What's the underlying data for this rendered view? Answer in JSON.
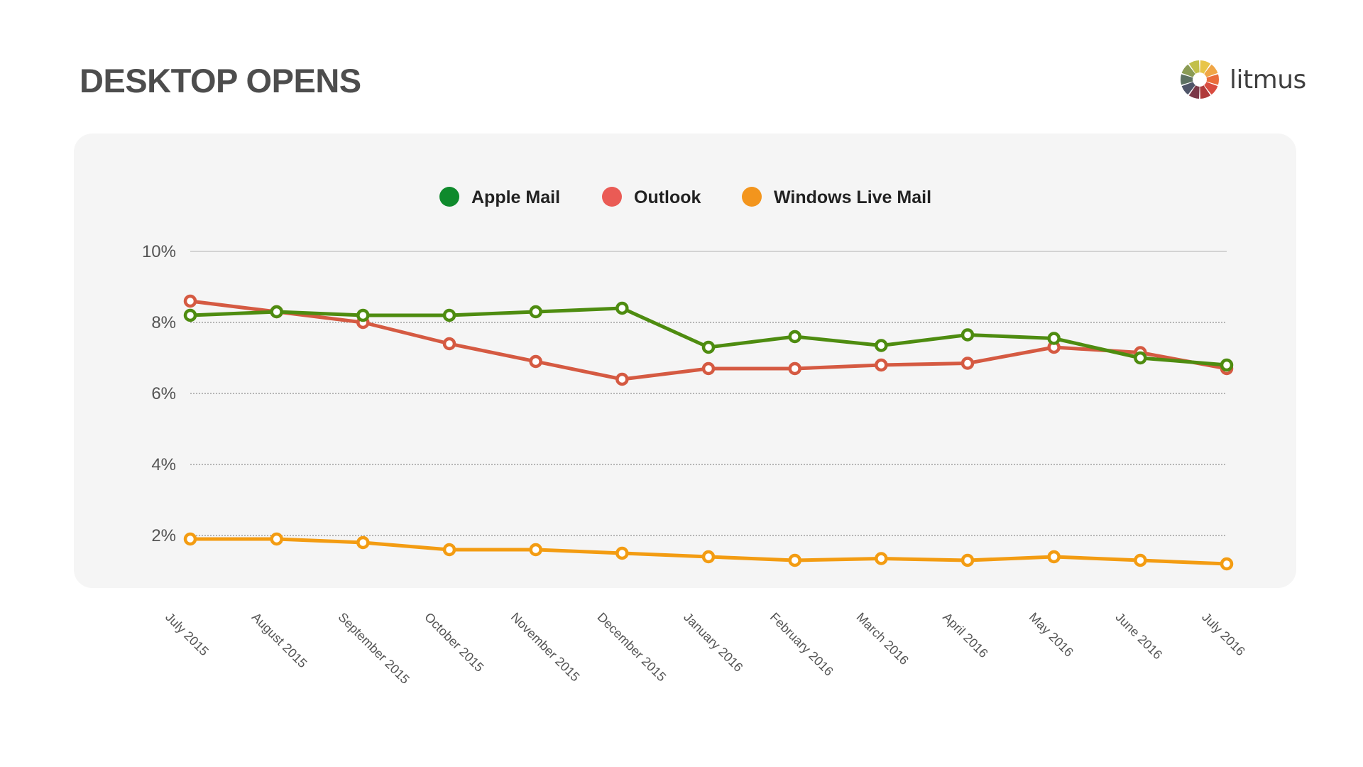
{
  "header": {
    "title": "DESKTOP OPENS",
    "logo_text": "litmus"
  },
  "logo_colors": [
    "#e8c547",
    "#f0a646",
    "#ea6d3b",
    "#d94c40",
    "#b03a3a",
    "#7a3848",
    "#4f5569",
    "#5d7162",
    "#8a9b54",
    "#c2c04a"
  ],
  "chart_data": {
    "type": "line",
    "title": "DESKTOP OPENS",
    "xlabel": "",
    "ylabel": "",
    "ylim": [
      0,
      10
    ],
    "yticks": [
      2,
      4,
      6,
      8,
      10
    ],
    "ytick_labels": [
      "2%",
      "4%",
      "6%",
      "8%",
      "10%"
    ],
    "grid": true,
    "legend_position": "top-center",
    "categories": [
      "July 2015",
      "August 2015",
      "September 2015",
      "October 2015",
      "November 2015",
      "December 2015",
      "January 2016",
      "February 2016",
      "March 2016",
      "April 2016",
      "May 2016",
      "June 2016",
      "July 2016"
    ],
    "series": [
      {
        "name": "Apple Mail",
        "color": "#4e8c10",
        "legend_color": "#0f8a2c",
        "values": [
          8.2,
          8.3,
          8.2,
          8.2,
          8.3,
          8.4,
          7.3,
          7.6,
          7.35,
          7.65,
          7.55,
          7.0,
          6.8
        ]
      },
      {
        "name": "Outlook",
        "color": "#d55a42",
        "legend_color": "#ea5b55",
        "values": [
          8.6,
          8.3,
          8.0,
          7.4,
          6.9,
          6.4,
          6.7,
          6.7,
          6.8,
          6.85,
          7.3,
          7.15,
          6.7
        ]
      },
      {
        "name": "Windows Live Mail",
        "color": "#f39c12",
        "legend_color": "#f3951d",
        "values": [
          1.9,
          1.9,
          1.8,
          1.6,
          1.6,
          1.5,
          1.4,
          1.3,
          1.35,
          1.3,
          1.4,
          1.3,
          1.2
        ]
      }
    ]
  }
}
